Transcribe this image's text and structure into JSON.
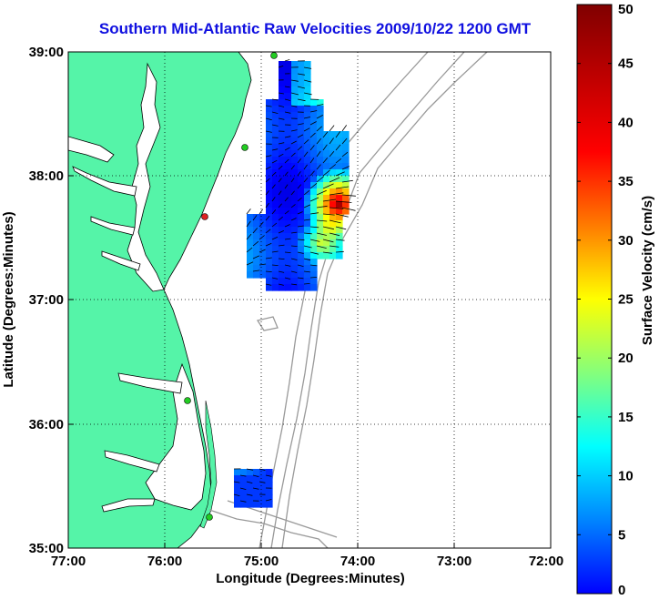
{
  "title": "Southern Mid-Atlantic Raw Velocities 2009/10/22 1200 GMT",
  "map": {
    "xlabel": "Longitude (Degrees:Minutes)",
    "ylabel": "Latitude (Degrees:Minutes)",
    "x_ticks": [
      "77:00",
      "76:00",
      "75:00",
      "74:00",
      "73:00",
      "72:00"
    ],
    "y_ticks": [
      "39:00",
      "38:00",
      "37:00",
      "36:00",
      "35:00"
    ],
    "lon_range": [
      -77,
      -72
    ],
    "lat_range": [
      35,
      39
    ],
    "grid": true,
    "land_color": "#55f4a8",
    "coast_color": "#000000",
    "bathymetry_color": "#999999"
  },
  "colorbar": {
    "label": "Surface Velocity (cm/s)",
    "ticks": [
      "0",
      "5",
      "10",
      "15",
      "20",
      "25",
      "30",
      "35",
      "40",
      "45",
      "50"
    ],
    "range": [
      0,
      50
    ],
    "colormap": "jet"
  },
  "stations": {
    "color": "#22cc22",
    "active_color": "#dd2222"
  }
}
